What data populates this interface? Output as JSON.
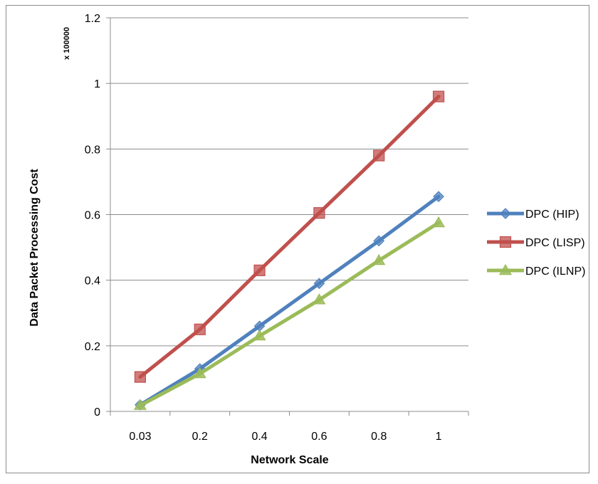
{
  "chart_data": {
    "type": "line",
    "categories": [
      "0.03",
      "0.2",
      "0.4",
      "0.6",
      "0.8",
      "1"
    ],
    "series": [
      {
        "name": "DPC (HIP)",
        "values": [
          0.02,
          0.13,
          0.26,
          0.39,
          0.52,
          0.655
        ],
        "color": "#4f81bd",
        "marker": "diamond"
      },
      {
        "name": "DPC (LISP)",
        "values": [
          0.105,
          0.25,
          0.43,
          0.605,
          0.78,
          0.96
        ],
        "color": "#c0504d",
        "marker": "square"
      },
      {
        "name": "DPC (ILNP)",
        "values": [
          0.018,
          0.115,
          0.23,
          0.34,
          0.46,
          0.575
        ],
        "color": "#9bbb59",
        "marker": "triangle"
      }
    ],
    "xlabel": "Network Scale",
    "ylabel": "Data Packet Processing Cost",
    "y_multiplier": "x 100000",
    "ylim": [
      0,
      1.2
    ],
    "yticks": [
      "0",
      "0.2",
      "0.4",
      "0.6",
      "0.8",
      "1",
      "1.2"
    ],
    "grid": "horizontal",
    "legend": "right"
  }
}
